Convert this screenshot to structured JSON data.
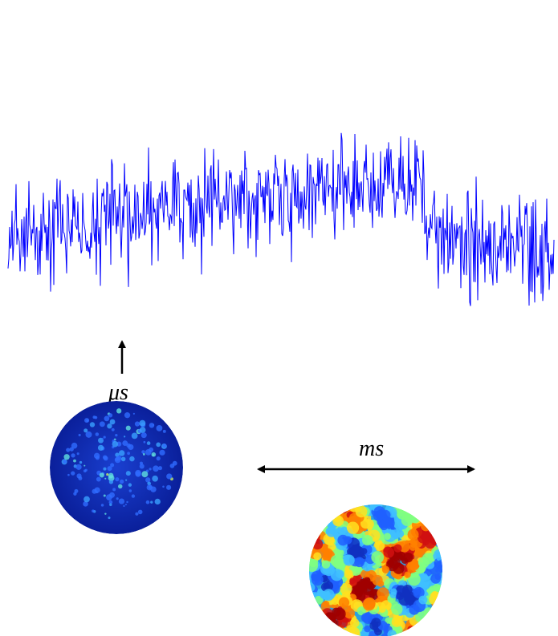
{
  "labels": {
    "fast": "μs",
    "slow": "ms"
  }
}
